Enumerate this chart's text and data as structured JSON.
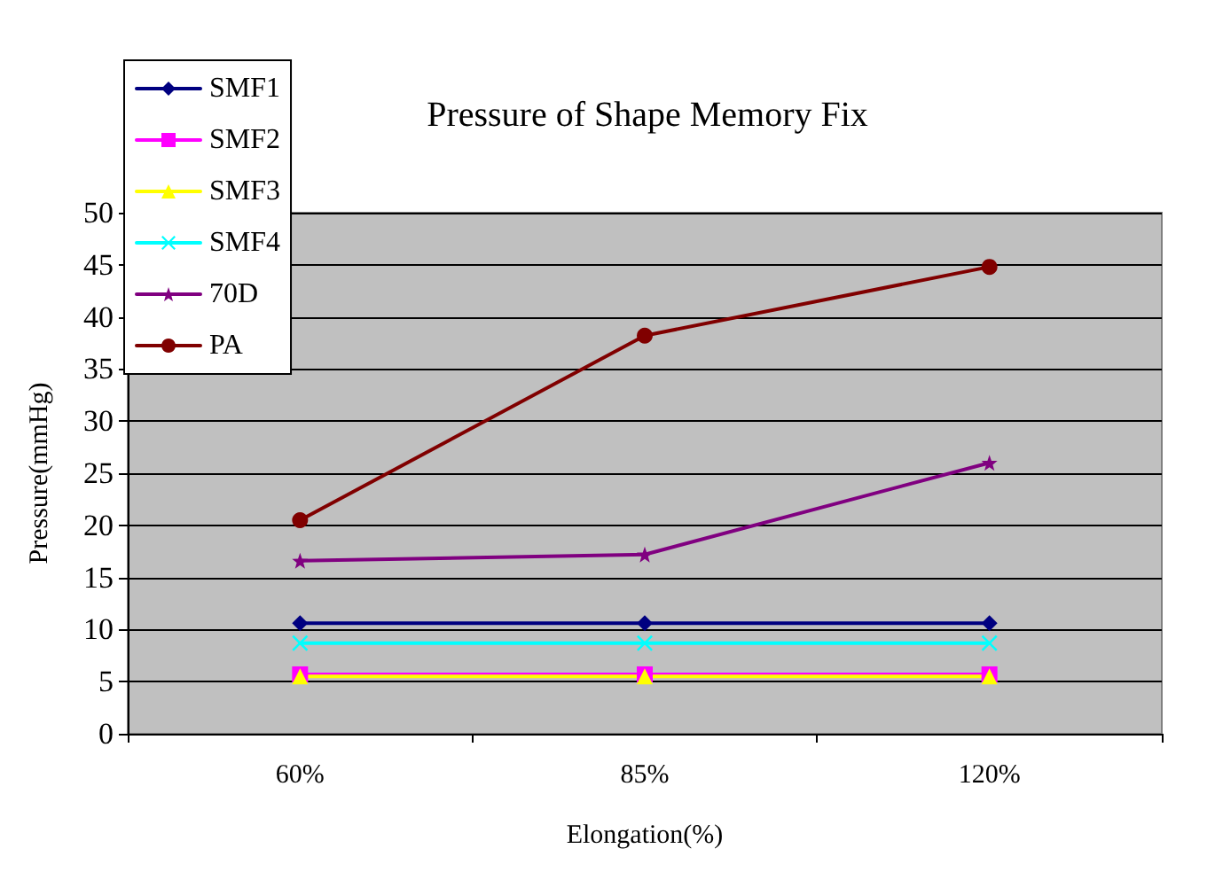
{
  "chart_data": {
    "type": "line",
    "title": "Pressure of Shape Memory Fix",
    "xlabel": "Elongation(%)",
    "ylabel": "Pressure(mmHg)",
    "categories": [
      "60%",
      "85%",
      "120%"
    ],
    "series": [
      {
        "name": "SMF1",
        "color": "#000080",
        "marker": "diamond",
        "values": [
          10.6,
          10.6,
          10.6
        ]
      },
      {
        "name": "SMF2",
        "color": "#ff00ff",
        "marker": "square",
        "values": [
          5.7,
          5.7,
          5.7
        ]
      },
      {
        "name": "SMF3",
        "color": "#ffff00",
        "marker": "triangle",
        "values": [
          5.5,
          5.5,
          5.5
        ]
      },
      {
        "name": "SMF4",
        "color": "#00ffff",
        "marker": "cross",
        "values": [
          8.7,
          8.7,
          8.7
        ]
      },
      {
        "name": "70D",
        "color": "#800080",
        "marker": "star",
        "values": [
          16.6,
          17.2,
          26.0
        ]
      },
      {
        "name": "PA",
        "color": "#800000",
        "marker": "circle",
        "values": [
          20.5,
          38.2,
          44.8
        ]
      }
    ],
    "ylim": [
      0,
      50
    ],
    "yticks": [
      0,
      5,
      10,
      15,
      20,
      25,
      30,
      35,
      40,
      45,
      50
    ],
    "grid": "y",
    "legend": "top left",
    "line_style": "solid"
  }
}
